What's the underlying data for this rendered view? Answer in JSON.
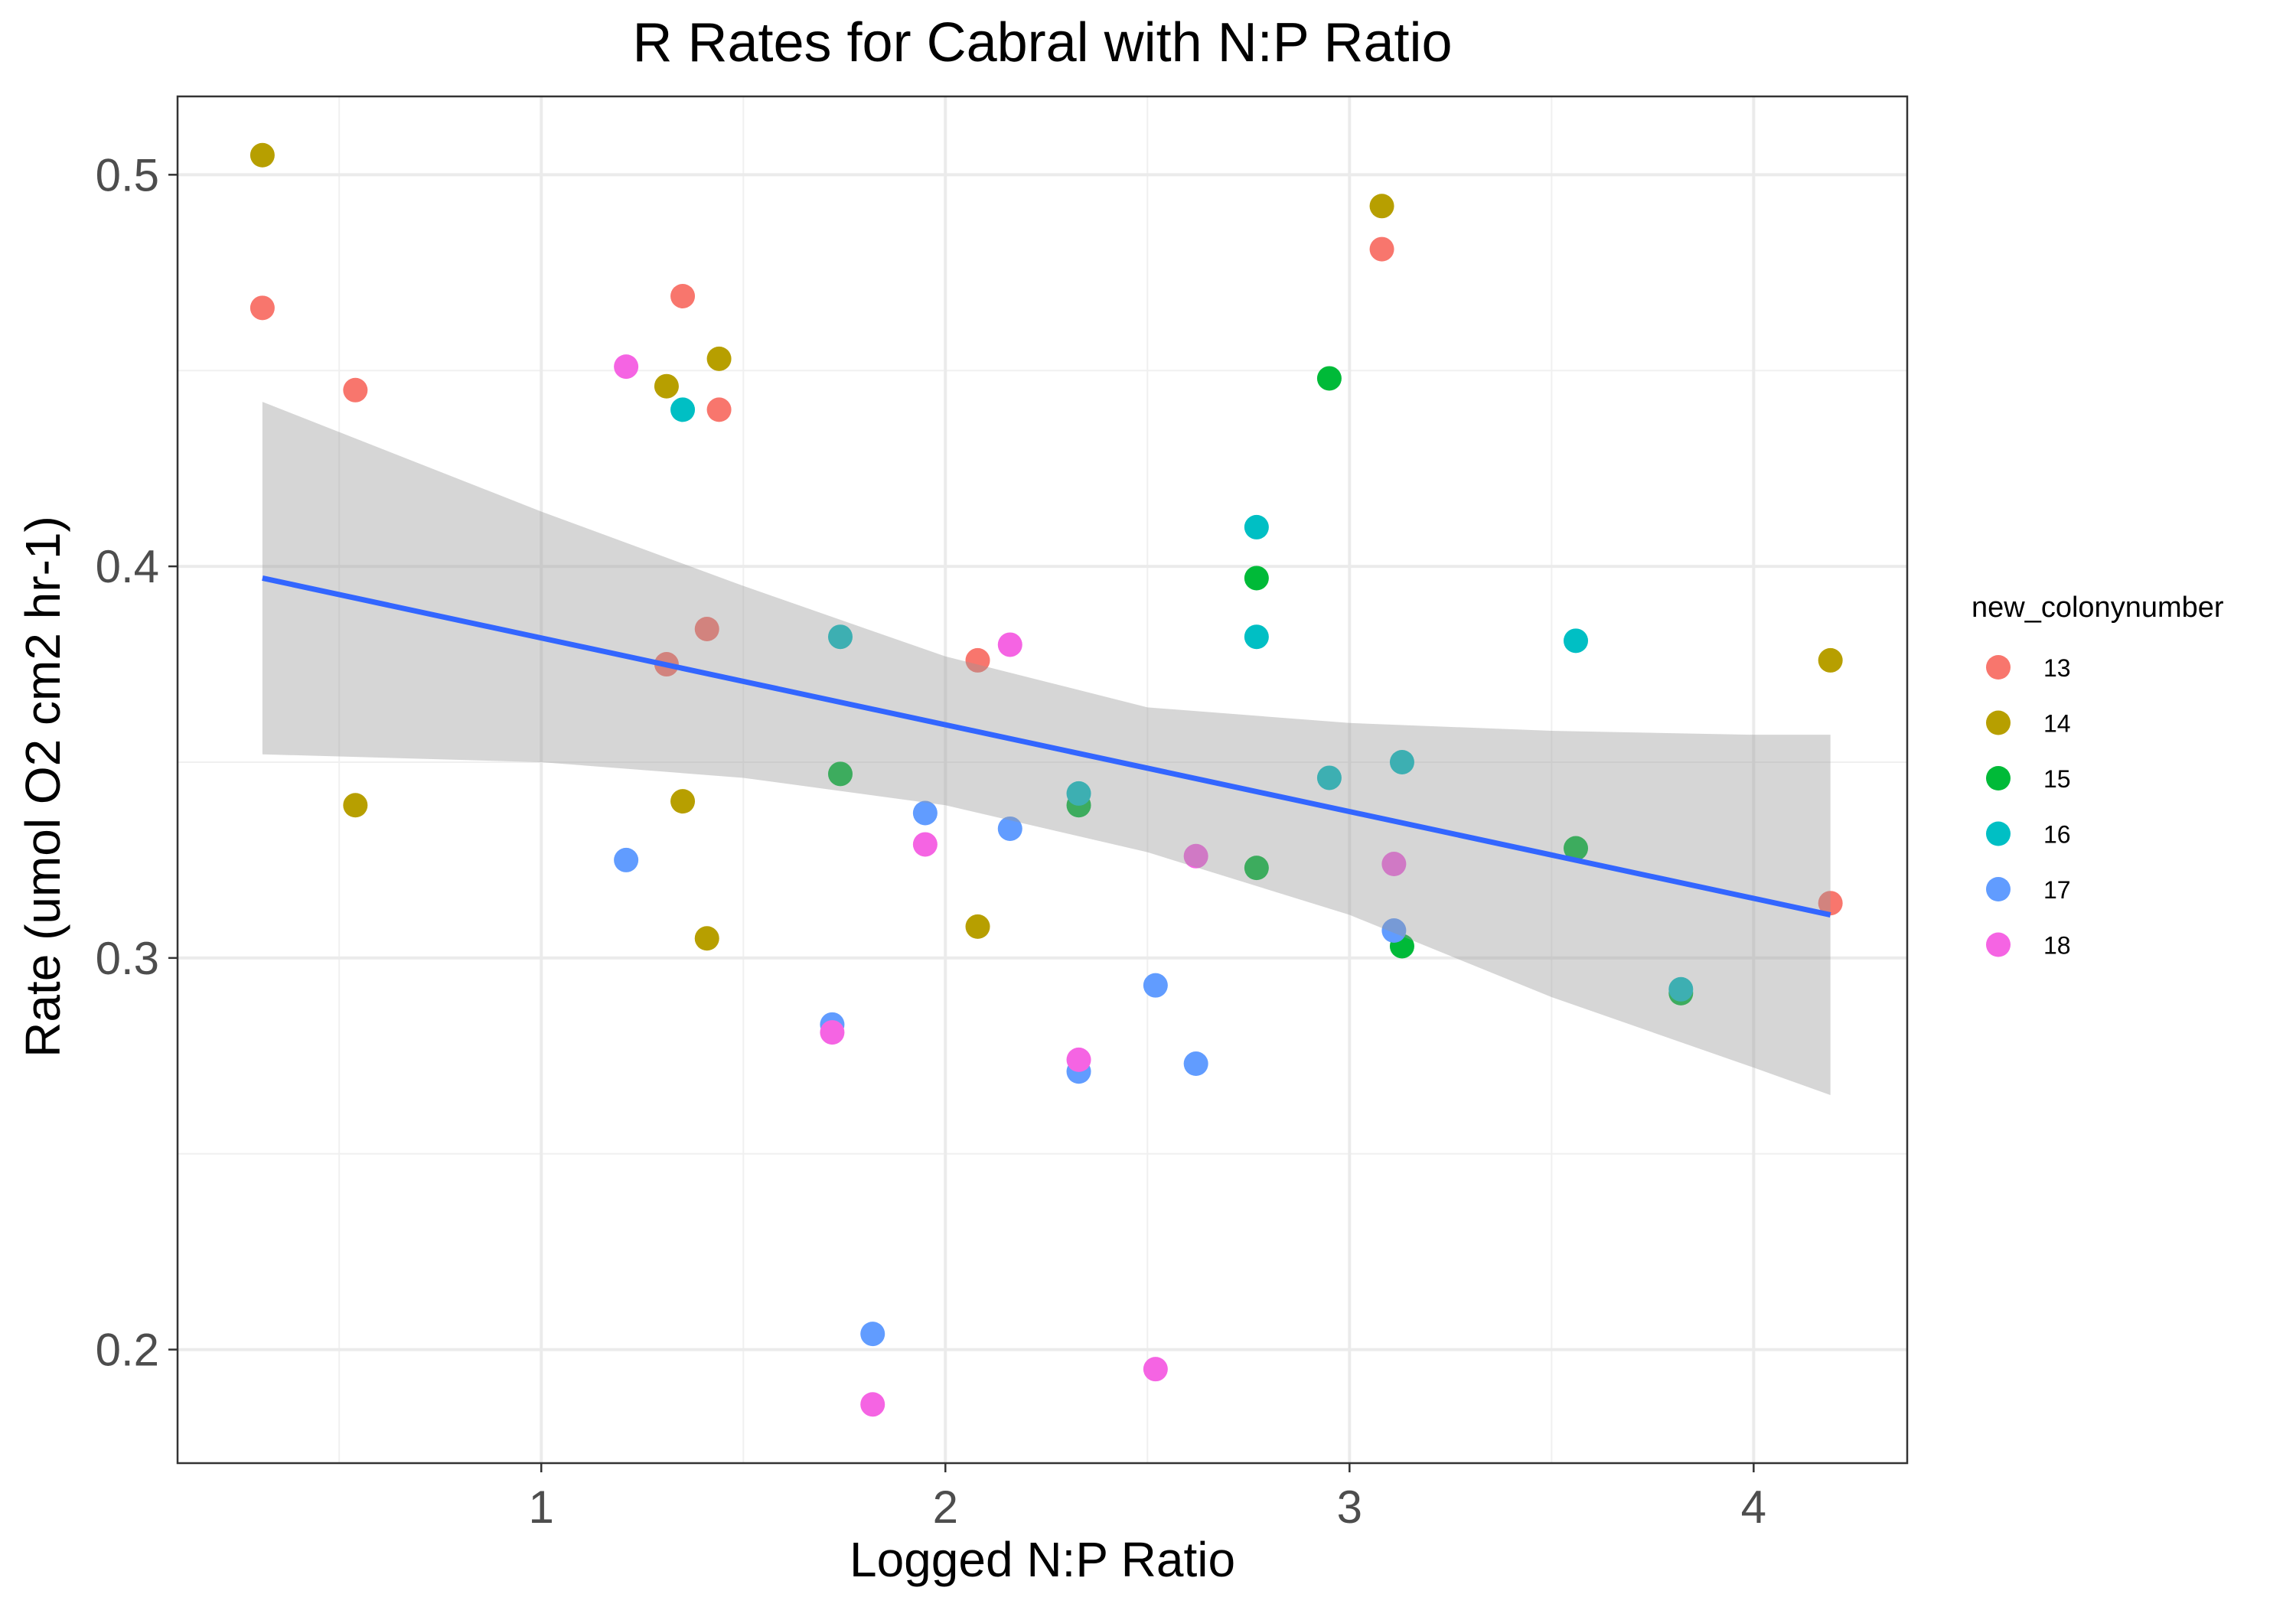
{
  "chart_data": {
    "type": "scatter",
    "title": "R Rates for Cabral with N:P Ratio",
    "xlabel": "Logged N:P Ratio",
    "ylabel": "Rate (umol O2 cm2 hr-1)",
    "xlim": [
      0.1,
      4.38
    ],
    "ylim": [
      0.171,
      0.52
    ],
    "x_ticks": [
      1,
      2,
      3,
      4
    ],
    "x_tick_labels": [
      "1",
      "2",
      "3",
      "4"
    ],
    "y_ticks": [
      0.2,
      0.3,
      0.4,
      0.5
    ],
    "y_tick_labels": [
      "0.2",
      "0.3",
      "0.4",
      "0.5"
    ],
    "grid": true,
    "legend": {
      "title": "new_colonynumber",
      "position": "right",
      "entries": [
        {
          "label": "13",
          "color": "#F8766D"
        },
        {
          "label": "14",
          "color": "#B79F00"
        },
        {
          "label": "15",
          "color": "#00BA38"
        },
        {
          "label": "16",
          "color": "#00BFC4"
        },
        {
          "label": "17",
          "color": "#619CFF"
        },
        {
          "label": "18",
          "color": "#F564E3"
        }
      ]
    },
    "series": [
      {
        "name": "13",
        "color": "#F8766D",
        "points": [
          [
            0.31,
            0.466
          ],
          [
            0.54,
            0.445
          ],
          [
            1.31,
            0.375
          ],
          [
            1.35,
            0.469
          ],
          [
            1.41,
            0.384
          ],
          [
            1.44,
            0.44
          ],
          [
            2.08,
            0.376
          ],
          [
            3.08,
            0.481
          ],
          [
            4.19,
            0.314
          ]
        ]
      },
      {
        "name": "14",
        "color": "#B79F00",
        "points": [
          [
            0.31,
            0.505
          ],
          [
            0.54,
            0.339
          ],
          [
            1.31,
            0.446
          ],
          [
            1.35,
            0.34
          ],
          [
            1.41,
            0.305
          ],
          [
            1.44,
            0.453
          ],
          [
            2.08,
            0.308
          ],
          [
            3.08,
            0.492
          ],
          [
            4.19,
            0.376
          ]
        ]
      },
      {
        "name": "15",
        "color": "#00BA38",
        "points": [
          [
            1.74,
            0.347
          ],
          [
            2.33,
            0.339
          ],
          [
            2.77,
            0.323
          ],
          [
            2.77,
            0.397
          ],
          [
            2.95,
            0.448
          ],
          [
            3.13,
            0.303
          ],
          [
            3.56,
            0.328
          ],
          [
            3.82,
            0.291
          ]
        ]
      },
      {
        "name": "16",
        "color": "#00BFC4",
        "points": [
          [
            1.35,
            0.44
          ],
          [
            1.74,
            0.382
          ],
          [
            2.33,
            0.342
          ],
          [
            2.77,
            0.41
          ],
          [
            2.77,
            0.382
          ],
          [
            2.95,
            0.346
          ],
          [
            3.13,
            0.35
          ],
          [
            3.56,
            0.381
          ],
          [
            3.82,
            0.292
          ]
        ]
      },
      {
        "name": "17",
        "color": "#619CFF",
        "points": [
          [
            1.21,
            0.325
          ],
          [
            1.72,
            0.283
          ],
          [
            1.82,
            0.204
          ],
          [
            1.95,
            0.337
          ],
          [
            2.16,
            0.333
          ],
          [
            2.33,
            0.271
          ],
          [
            2.52,
            0.293
          ],
          [
            2.62,
            0.273
          ],
          [
            3.11,
            0.307
          ]
        ]
      },
      {
        "name": "18",
        "color": "#F564E3",
        "points": [
          [
            1.21,
            0.451
          ],
          [
            1.72,
            0.281
          ],
          [
            1.82,
            0.186
          ],
          [
            1.95,
            0.329
          ],
          [
            2.16,
            0.38
          ],
          [
            2.33,
            0.274
          ],
          [
            2.52,
            0.195
          ],
          [
            2.62,
            0.326
          ],
          [
            3.11,
            0.324
          ]
        ]
      }
    ],
    "trend_line": {
      "color": "#3366FF",
      "points": [
        [
          0.31,
          0.397
        ],
        [
          4.19,
          0.311
        ]
      ],
      "confidence_band": {
        "color": "#999999",
        "x": [
          0.31,
          1.0,
          1.5,
          2.0,
          2.5,
          3.0,
          3.5,
          4.0,
          4.19
        ],
        "upper": [
          0.442,
          0.414,
          0.395,
          0.377,
          0.364,
          0.36,
          0.358,
          0.357,
          0.357
        ],
        "lower": [
          0.352,
          0.35,
          0.346,
          0.339,
          0.327,
          0.311,
          0.29,
          0.272,
          0.265
        ]
      }
    }
  }
}
